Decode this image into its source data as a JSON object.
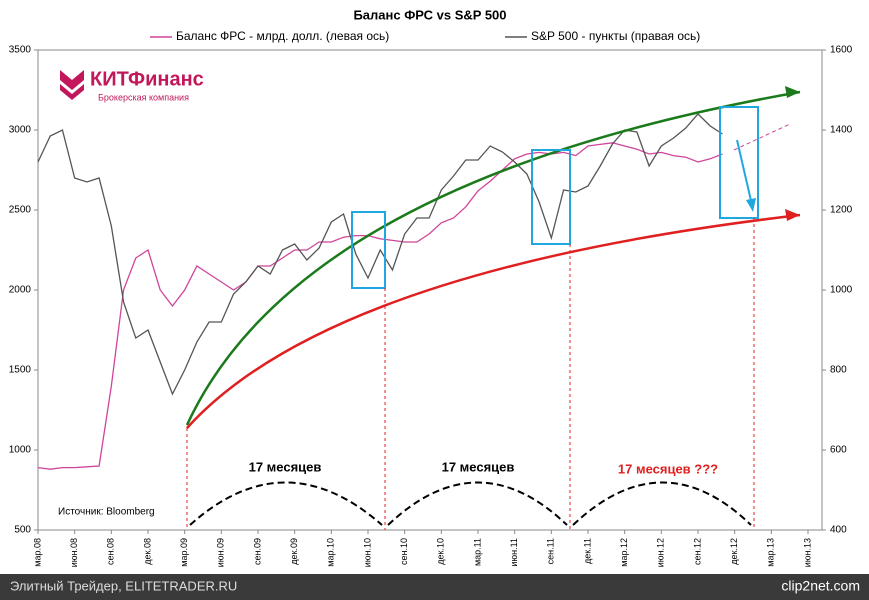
{
  "chart_data": {
    "type": "line",
    "title": "Баланс ФРС vs S&P 500",
    "categories": [
      "мар.08",
      null,
      null,
      "июн.08",
      null,
      null,
      "сен.08",
      null,
      null,
      "дек.08",
      null,
      null,
      "мар.09",
      null,
      null,
      "июн.09",
      null,
      null,
      "сен.09",
      null,
      null,
      "дек.09",
      null,
      null,
      "мар.10",
      null,
      null,
      "июн.10",
      null,
      null,
      "сен.10",
      null,
      null,
      "дек.10",
      null,
      null,
      "мар.11",
      null,
      null,
      "июн.11",
      null,
      null,
      "сен.11",
      null,
      null,
      "дек.11",
      null,
      null,
      "мар.12",
      null,
      null,
      "июн.12",
      null,
      null,
      "сен.12",
      null,
      null,
      "дек.12",
      null,
      null,
      "мар.13",
      null,
      null,
      "июн.13"
    ],
    "series": [
      {
        "name": "Баланс ФРС - млрд. долл. (левая ось)",
        "color": "#d0449a",
        "axis": "y",
        "values": [
          890,
          880,
          890,
          890,
          895,
          900,
          1400,
          2000,
          2200,
          2250,
          2000,
          1900,
          2000,
          2150,
          2100,
          2050,
          2000,
          2050,
          2150,
          2150,
          2200,
          2250,
          2250,
          2300,
          2300,
          2330,
          2340,
          2340,
          2320,
          2310,
          2300,
          2300,
          2350,
          2420,
          2450,
          2520,
          2620,
          2680,
          2750,
          2820,
          2850,
          2860,
          2850,
          2860,
          2840,
          2900,
          2910,
          2920,
          2900,
          2880,
          2850,
          2860,
          2840,
          2830,
          2800,
          2820,
          2850,
          null,
          null,
          null,
          null,
          null,
          null,
          null
        ]
      },
      {
        "name": "S&P 500 - пункты (правая ось)",
        "color": "#555555",
        "axis": "y2",
        "values": [
          1320,
          1385,
          1400,
          1280,
          1270,
          1280,
          1160,
          970,
          880,
          900,
          820,
          740,
          800,
          870,
          920,
          920,
          990,
          1020,
          1060,
          1040,
          1100,
          1115,
          1075,
          1105,
          1170,
          1190,
          1090,
          1030,
          1100,
          1050,
          1140,
          1180,
          1180,
          1250,
          1285,
          1325,
          1325,
          1360,
          1345,
          1320,
          1290,
          1220,
          1130,
          1250,
          1245,
          1260,
          1310,
          1365,
          1400,
          1395,
          1310,
          1360,
          1380,
          1405,
          1440,
          1410,
          1390,
          null,
          null,
          null,
          null,
          null,
          null,
          null
        ]
      }
    ],
    "ylim": [
      500,
      3500
    ],
    "yticks": [
      500,
      1000,
      1500,
      2000,
      2500,
      3000,
      3500
    ],
    "y2lim": [
      400,
      1600
    ],
    "y2ticks": [
      400,
      600,
      800,
      1000,
      1200,
      1400,
      1600
    ],
    "annotations": [
      "17 месяцев",
      "17 месяцев",
      "17 месяцев ???",
      "Источник: Bloomberg"
    ]
  },
  "logo": {
    "name": "КИТФинанс",
    "subtitle": "Брокерская компания"
  },
  "footer": {
    "source": "Элитный Трейдер, ELITETRADER.RU",
    "watermark": "clip2net.com"
  }
}
